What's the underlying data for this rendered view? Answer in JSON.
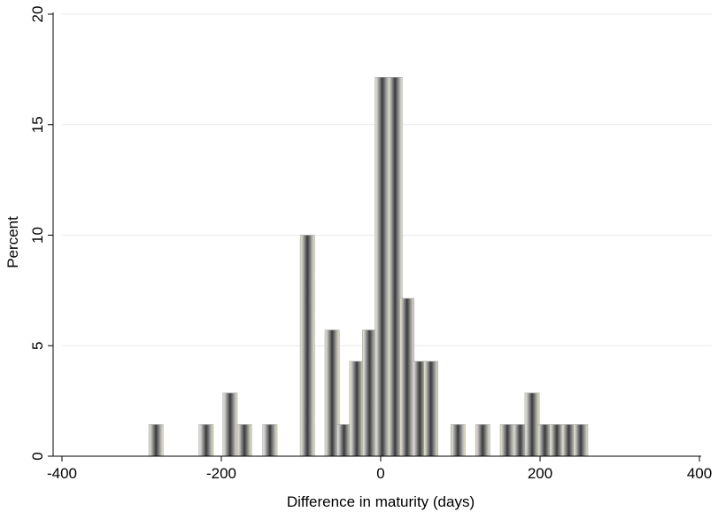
{
  "chart_data": {
    "type": "bar",
    "xlabel": "Difference in maturity (days)",
    "ylabel": "Percent",
    "xlim": [
      -400,
      400
    ],
    "ylim": [
      0,
      20
    ],
    "xticks": [
      -400,
      -200,
      0,
      200,
      400
    ],
    "yticks": [
      0,
      5,
      10,
      15,
      20
    ],
    "grid": true,
    "bin_width": 18,
    "bars": [
      {
        "x": -282,
        "value": 1.43
      },
      {
        "x": -219,
        "value": 1.43
      },
      {
        "x": -189,
        "value": 2.86
      },
      {
        "x": -171,
        "value": 1.43
      },
      {
        "x": -139,
        "value": 1.43
      },
      {
        "x": -92,
        "value": 10.0
      },
      {
        "x": -61,
        "value": 5.71
      },
      {
        "x": -46,
        "value": 1.43
      },
      {
        "x": -30,
        "value": 4.29
      },
      {
        "x": -14,
        "value": 5.71
      },
      {
        "x": 2,
        "value": 17.14
      },
      {
        "x": 18,
        "value": 17.14
      },
      {
        "x": 33,
        "value": 7.14
      },
      {
        "x": 49,
        "value": 4.29
      },
      {
        "x": 63,
        "value": 4.29
      },
      {
        "x": 97,
        "value": 1.43
      },
      {
        "x": 128,
        "value": 1.43
      },
      {
        "x": 159,
        "value": 1.43
      },
      {
        "x": 175,
        "value": 1.43
      },
      {
        "x": 190,
        "value": 2.86
      },
      {
        "x": 206,
        "value": 1.43
      },
      {
        "x": 221,
        "value": 1.43
      },
      {
        "x": 236,
        "value": 1.43
      },
      {
        "x": 251,
        "value": 1.43
      }
    ]
  },
  "colors": {
    "bar_dark": "#4a4a4a",
    "bar_light": "#d8d8d8",
    "bar_highlight": "#e8e4b8",
    "grid": "#eaeaea",
    "axis": "#000000"
  }
}
